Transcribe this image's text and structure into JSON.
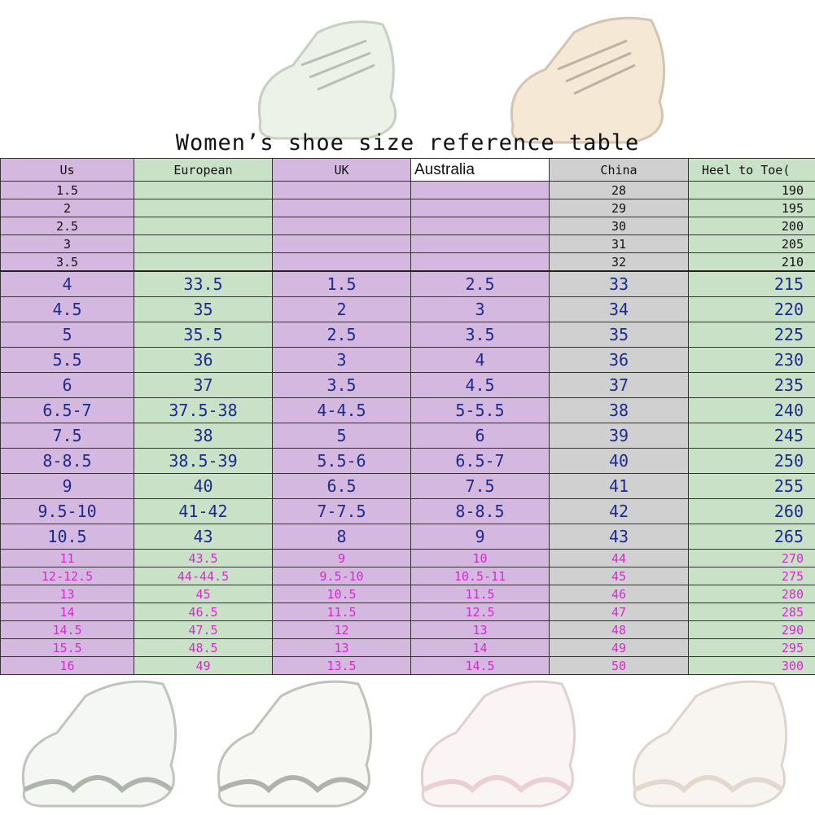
{
  "title": "Women’s shoe size reference table",
  "headers": [
    "Us",
    "European",
    "UK",
    "Australia",
    "China",
    "Heel to Toe("
  ],
  "small_rows": [
    [
      "1.5",
      "",
      "",
      "",
      "28",
      "190"
    ],
    [
      "2",
      "",
      "",
      "",
      "29",
      "195"
    ],
    [
      "2.5",
      "",
      "",
      "",
      "30",
      "200"
    ],
    [
      "3",
      "",
      "",
      "",
      "31",
      "205"
    ],
    [
      "3.5",
      "",
      "",
      "",
      "32",
      "210"
    ]
  ],
  "big_rows": [
    [
      "4",
      "33.5",
      "1.5",
      "2.5",
      "33",
      "215"
    ],
    [
      "4.5",
      "35",
      "2",
      "3",
      "34",
      "220"
    ],
    [
      "5",
      "35.5",
      "2.5",
      "3.5",
      "35",
      "225"
    ],
    [
      "5.5",
      "36",
      "3",
      "4",
      "36",
      "230"
    ],
    [
      "6",
      "37",
      "3.5",
      "4.5",
      "37",
      "235"
    ],
    [
      "6.5-7",
      "37.5-38",
      "4-4.5",
      "5-5.5",
      "38",
      "240"
    ],
    [
      "7.5",
      "38",
      "5",
      "6",
      "39",
      "245"
    ],
    [
      "8-8.5",
      "38.5-39",
      "5.5-6",
      "6.5-7",
      "40",
      "250"
    ],
    [
      "9",
      "40",
      "6.5",
      "7.5",
      "41",
      "255"
    ],
    [
      "9.5-10",
      "41-42",
      "7-7.5",
      "8-8.5",
      "42",
      "260"
    ],
    [
      "10.5",
      "43",
      "8",
      "9",
      "43",
      "265"
    ]
  ],
  "magenta_rows": [
    [
      "11",
      "43.5",
      "9",
      "10",
      "44",
      "270"
    ],
    [
      "12-12.5",
      "44-44.5",
      "9.5-10",
      "10.5-11",
      "45",
      "275"
    ],
    [
      "13",
      "45",
      "10.5",
      "11.5",
      "46",
      "280"
    ],
    [
      "14",
      "46.5",
      "11.5",
      "12.5",
      "47",
      "285"
    ],
    [
      "14.5",
      "47.5",
      "12",
      "13",
      "48",
      "290"
    ],
    [
      "15.5",
      "48.5",
      "13",
      "14",
      "49",
      "295"
    ],
    [
      "16",
      "49",
      "13.5",
      "14.5",
      "50",
      "300"
    ]
  ],
  "colors": {
    "purple": "#c49cd2",
    "green": "#b4d6b2",
    "gray": "#bebebe",
    "navy_text": "#1c2a8c",
    "magenta_text": "#d42ad0"
  },
  "icons": [
    "shoe-icon"
  ]
}
